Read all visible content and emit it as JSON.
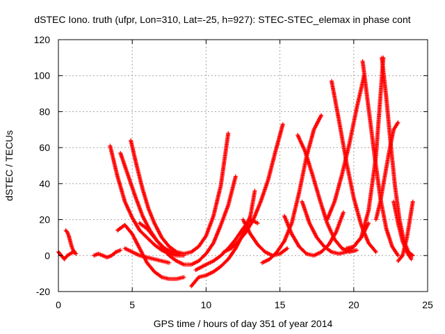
{
  "chart_data": {
    "type": "scatter",
    "title": "dSTEC Iono. truth (ufpr, Lon=310, Lat=-25, h=927): STEC-STEC_elemax in phase cont",
    "xlabel": "GPS time / hours of day 351 of year 2014",
    "ylabel": "dSTEC  / TECUs",
    "xlim": [
      0,
      25
    ],
    "ylim": [
      -20,
      120
    ],
    "xticks": [
      0,
      5,
      10,
      15,
      20,
      25
    ],
    "yticks": [
      -20,
      0,
      20,
      40,
      60,
      80,
      100,
      120
    ],
    "xtick_labels": [
      "0",
      "5",
      "10",
      "15",
      "20",
      "25"
    ],
    "ytick_labels": [
      "-20",
      "0",
      "20",
      "40",
      "60",
      "80",
      "100",
      "120"
    ],
    "grid": true,
    "marker": "+",
    "color": "#ff0000",
    "series": [
      {
        "x": [
          0.0,
          0.2,
          0.4,
          0.6,
          0.8,
          1.0,
          1.2
        ],
        "y": [
          2,
          0,
          -2,
          0,
          1,
          2,
          1
        ]
      },
      {
        "x": [
          0.5,
          0.6,
          0.7,
          0.8,
          0.9,
          1.0,
          1.1
        ],
        "y": [
          14,
          13,
          11,
          8,
          5,
          3,
          2
        ]
      },
      {
        "x": [
          2.4,
          2.7,
          3.0,
          3.3,
          3.6,
          3.9,
          4.2
        ],
        "y": [
          0,
          1,
          0,
          -1,
          0,
          2,
          3
        ]
      },
      {
        "x": [
          3.5,
          4.0,
          4.5,
          5.0,
          5.5,
          6.0,
          6.5,
          7.0,
          7.5,
          8.0,
          8.5
        ],
        "y": [
          61,
          44,
          30,
          21,
          14,
          10,
          6,
          3,
          1,
          0,
          0
        ]
      },
      {
        "x": [
          4.2,
          4.7,
          5.2,
          5.7,
          6.2,
          6.7,
          7.2,
          7.7,
          8.2
        ],
        "y": [
          57,
          45,
          33,
          22,
          14,
          8,
          4,
          2,
          1
        ]
      },
      {
        "x": [
          4.9,
          5.3,
          5.7,
          6.1,
          6.5,
          7.0,
          7.5,
          8.0,
          8.5,
          9.0,
          9.5,
          10.0,
          10.5,
          11.0,
          11.5
        ],
        "y": [
          64,
          50,
          37,
          26,
          18,
          10,
          5,
          2,
          1,
          2,
          5,
          11,
          22,
          39,
          68
        ]
      },
      {
        "x": [
          4.0,
          4.5,
          5.0,
          5.5,
          6.0,
          6.5,
          7.0,
          7.5,
          8.0,
          8.5
        ],
        "y": [
          14,
          17,
          12,
          4,
          -4,
          -9,
          -12,
          -13,
          -13,
          -12
        ]
      },
      {
        "x": [
          5.5,
          6.0,
          6.5,
          7.0,
          7.5,
          8.0,
          8.5,
          9.0,
          9.5,
          10.0,
          10.5,
          11.0,
          11.5,
          12.0
        ],
        "y": [
          18,
          15,
          10,
          5,
          0,
          -3,
          -5,
          -5,
          -3,
          1,
          7,
          17,
          28,
          44
        ]
      },
      {
        "x": [
          4.5,
          5.0,
          5.5,
          6.0,
          6.5,
          7.0,
          7.5
        ],
        "y": [
          4,
          2,
          0,
          -1,
          -2,
          -3,
          -4
        ]
      },
      {
        "x": [
          9.0,
          9.5,
          10.0,
          10.5,
          11.0,
          11.5,
          12.0,
          12.5,
          13.0,
          13.3
        ],
        "y": [
          -17,
          -12,
          -11,
          -9,
          -6,
          -2,
          4,
          12,
          22,
          36
        ]
      },
      {
        "x": [
          9.3,
          10.0,
          10.5,
          11.0,
          11.5,
          12.0,
          12.5,
          13.0,
          13.5
        ],
        "y": [
          -8,
          -5,
          -3,
          0,
          4,
          9,
          15,
          20,
          18
        ]
      },
      {
        "x": [
          11.2,
          11.7,
          12.2,
          12.7,
          13.2,
          13.7,
          14.2,
          14.7,
          15.2
        ],
        "y": [
          2,
          4,
          8,
          13,
          20,
          30,
          42,
          58,
          73
        ]
      },
      {
        "x": [
          12.5,
          13.0,
          13.5,
          14.0,
          14.5,
          15.0,
          15.5
        ],
        "y": [
          20,
          12,
          6,
          2,
          0,
          1,
          4
        ]
      },
      {
        "x": [
          13.8,
          14.3,
          14.8,
          15.3,
          15.8,
          16.3,
          16.8,
          17.3,
          17.8
        ],
        "y": [
          -4,
          -2,
          2,
          8,
          18,
          35,
          55,
          70,
          78
        ]
      },
      {
        "x": [
          15.3,
          15.8,
          16.3,
          16.8,
          17.3,
          17.8,
          18.3,
          18.8,
          19.3
        ],
        "y": [
          22,
          12,
          5,
          1,
          0,
          2,
          6,
          13,
          24
        ]
      },
      {
        "x": [
          16.2,
          16.7,
          17.2,
          17.7,
          18.2,
          18.7,
          19.2,
          19.7,
          20.2
        ],
        "y": [
          67,
          58,
          45,
          31,
          18,
          9,
          4,
          2,
          3
        ]
      },
      {
        "x": [
          16.5,
          17.0,
          17.5,
          18.0,
          18.5,
          19.0,
          19.5,
          20.0,
          20.5,
          21.0
        ],
        "y": [
          30,
          18,
          10,
          5,
          2,
          1,
          2,
          5,
          10,
          18
        ]
      },
      {
        "x": [
          18.5,
          19.0,
          19.5,
          20.0,
          20.5,
          21.0,
          21.5
        ],
        "y": [
          97,
          75,
          52,
          32,
          17,
          7,
          2
        ]
      },
      {
        "x": [
          18.2,
          18.7,
          19.2,
          19.7,
          20.2,
          20.7
        ],
        "y": [
          20,
          30,
          45,
          62,
          82,
          100
        ]
      },
      {
        "x": [
          20.6,
          21.0,
          21.4,
          21.8,
          22.2,
          22.6,
          23.0
        ],
        "y": [
          108,
          82,
          56,
          32,
          15,
          5,
          0
        ]
      },
      {
        "x": [
          19.5,
          20.0,
          20.5,
          21.0,
          21.5,
          22.0
        ],
        "y": [
          4,
          5,
          10,
          25,
          55,
          110
        ]
      },
      {
        "x": [
          21.9,
          22.2,
          22.5,
          22.8,
          23.1,
          23.4,
          23.7,
          24.0
        ],
        "y": [
          110,
          88,
          62,
          38,
          20,
          8,
          2,
          0
        ]
      },
      {
        "x": [
          21.5,
          21.8,
          22.1,
          22.4,
          22.7,
          23.0
        ],
        "y": [
          20,
          30,
          44,
          58,
          70,
          74
        ]
      },
      {
        "x": [
          22.7,
          23.0,
          23.3,
          23.6,
          23.9
        ],
        "y": [
          30,
          18,
          8,
          2,
          -2
        ]
      },
      {
        "x": [
          23.0,
          23.3,
          23.6,
          23.9,
          24.0
        ],
        "y": [
          -3,
          0,
          10,
          25,
          30
        ]
      }
    ]
  }
}
